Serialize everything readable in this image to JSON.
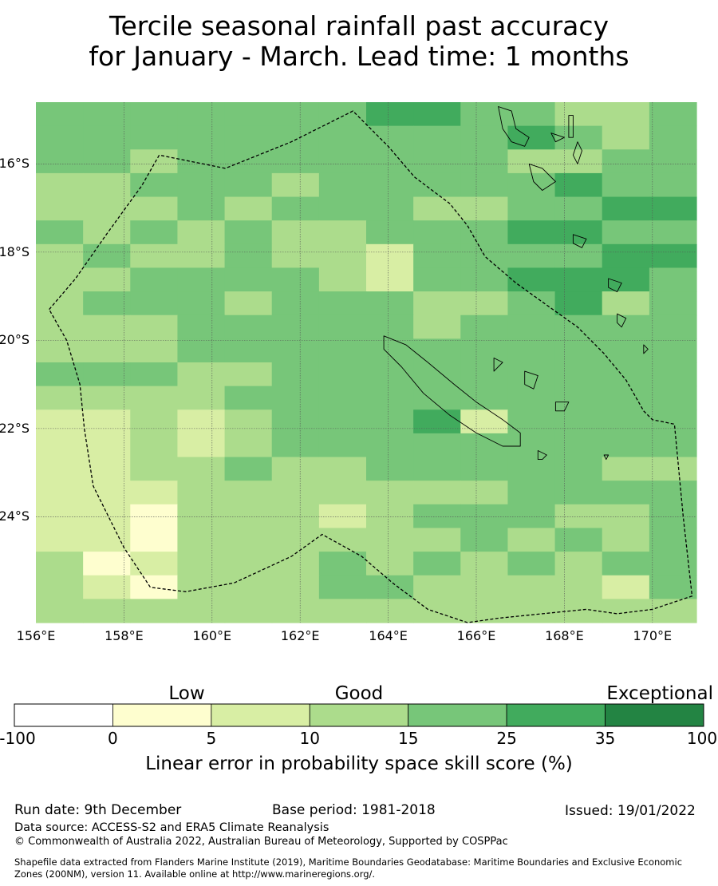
{
  "title": {
    "line1": "Tercile seasonal rainfall past accuracy",
    "line2": "for January - March. Lead time: 1 months"
  },
  "map": {
    "lon_range": [
      156,
      171
    ],
    "lat_range": [
      -14.6,
      -26.4
    ],
    "lon_ticks": [
      {
        "value": 156,
        "label": "156°E"
      },
      {
        "value": 158,
        "label": "158°E"
      },
      {
        "value": 160,
        "label": "160°E"
      },
      {
        "value": 162,
        "label": "162°E"
      },
      {
        "value": 164,
        "label": "164°E"
      },
      {
        "value": 166,
        "label": "166°E"
      },
      {
        "value": 168,
        "label": "168°E"
      },
      {
        "value": 170,
        "label": "170°E"
      }
    ],
    "lat_ticks": [
      {
        "value": -16,
        "label": "16°S"
      },
      {
        "value": -18,
        "label": "18°S"
      },
      {
        "value": -20,
        "label": "20°S"
      },
      {
        "value": -22,
        "label": "22°S"
      },
      {
        "value": -24,
        "label": "24°S"
      }
    ],
    "grid_rows": [
      "33333334433223",
      "33333333334323",
      "33233333332233",
      "22333233333433",
      "22232333223344",
      "32323223334433",
      "23223221333344",
      "22333321334443",
      "23332333223423",
      "22233333233333",
      "22233333333333",
      "33322333333333",
      "22223333333333",
      "11212333413333",
      "11212333333333",
      "11223223333322",
      "11122222223333",
      "11022212333223",
      "11022222232323",
      "20122232323233",
      "21022233222213",
      "22222222222222"
    ],
    "eez_boundary": [
      [
        156.3,
        -19.3
      ],
      [
        156.9,
        -18.6
      ],
      [
        157.6,
        -17.6
      ],
      [
        158.4,
        -16.5
      ],
      [
        158.8,
        -15.8
      ],
      [
        160.3,
        -16.1
      ],
      [
        161.8,
        -15.5
      ],
      [
        163.2,
        -14.8
      ],
      [
        164.0,
        -15.6
      ],
      [
        164.6,
        -16.3
      ],
      [
        165.4,
        -16.9
      ],
      [
        165.8,
        -17.4
      ],
      [
        166.2,
        -18.1
      ],
      [
        166.9,
        -18.7
      ],
      [
        167.6,
        -19.2
      ],
      [
        168.3,
        -19.7
      ],
      [
        168.9,
        -20.3
      ],
      [
        169.4,
        -20.9
      ],
      [
        169.8,
        -21.6
      ],
      [
        170.0,
        -21.8
      ],
      [
        170.5,
        -21.9
      ],
      [
        170.7,
        -24.0
      ],
      [
        170.9,
        -25.8
      ],
      [
        170.0,
        -26.1
      ],
      [
        169.2,
        -26.2
      ],
      [
        168.5,
        -26.1
      ],
      [
        167.5,
        -26.2
      ],
      [
        166.5,
        -26.3
      ],
      [
        165.8,
        -26.4
      ],
      [
        164.9,
        -26.1
      ],
      [
        164.1,
        -25.5
      ],
      [
        163.4,
        -24.9
      ],
      [
        162.5,
        -24.4
      ],
      [
        161.8,
        -24.9
      ],
      [
        160.5,
        -25.5
      ],
      [
        159.4,
        -25.7
      ],
      [
        158.6,
        -25.6
      ],
      [
        158.0,
        -24.7
      ],
      [
        157.3,
        -23.3
      ],
      [
        157.1,
        -22.0
      ],
      [
        157.0,
        -21.0
      ],
      [
        156.7,
        -20.0
      ],
      [
        156.3,
        -19.3
      ]
    ],
    "land": [
      {
        "name": "new-caledonia",
        "points": [
          [
            163.9,
            -19.9
          ],
          [
            164.4,
            -20.1
          ],
          [
            164.9,
            -20.5
          ],
          [
            165.5,
            -21.0
          ],
          [
            166.0,
            -21.4
          ],
          [
            166.6,
            -21.8
          ],
          [
            167.0,
            -22.1
          ],
          [
            167.0,
            -22.4
          ],
          [
            166.6,
            -22.4
          ],
          [
            166.0,
            -22.1
          ],
          [
            165.4,
            -21.7
          ],
          [
            164.8,
            -21.2
          ],
          [
            164.3,
            -20.6
          ],
          [
            163.9,
            -20.2
          ]
        ]
      },
      {
        "name": "espiritu-santo",
        "points": [
          [
            166.5,
            -14.7
          ],
          [
            166.8,
            -14.8
          ],
          [
            166.9,
            -15.2
          ],
          [
            167.2,
            -15.4
          ],
          [
            167.1,
            -15.6
          ],
          [
            166.8,
            -15.5
          ],
          [
            166.6,
            -15.2
          ]
        ]
      },
      {
        "name": "malakula",
        "points": [
          [
            167.2,
            -16.0
          ],
          [
            167.5,
            -16.1
          ],
          [
            167.8,
            -16.4
          ],
          [
            167.5,
            -16.6
          ],
          [
            167.3,
            -16.4
          ]
        ]
      },
      {
        "name": "maewo",
        "points": [
          [
            168.1,
            -14.9
          ],
          [
            168.2,
            -14.9
          ],
          [
            168.2,
            -15.4
          ],
          [
            168.1,
            -15.4
          ]
        ]
      },
      {
        "name": "efate",
        "points": [
          [
            168.2,
            -17.6
          ],
          [
            168.5,
            -17.7
          ],
          [
            168.4,
            -17.9
          ],
          [
            168.2,
            -17.8
          ]
        ]
      },
      {
        "name": "erromango",
        "points": [
          [
            169.0,
            -18.6
          ],
          [
            169.3,
            -18.7
          ],
          [
            169.2,
            -18.9
          ],
          [
            169.0,
            -18.8
          ]
        ]
      },
      {
        "name": "tanna",
        "points": [
          [
            169.2,
            -19.4
          ],
          [
            169.4,
            -19.5
          ],
          [
            169.3,
            -19.7
          ],
          [
            169.2,
            -19.6
          ]
        ]
      },
      {
        "name": "lifou",
        "points": [
          [
            167.1,
            -20.7
          ],
          [
            167.4,
            -20.8
          ],
          [
            167.3,
            -21.1
          ],
          [
            167.1,
            -21.0
          ]
        ]
      },
      {
        "name": "mare",
        "points": [
          [
            167.8,
            -21.4
          ],
          [
            168.1,
            -21.4
          ],
          [
            168.0,
            -21.6
          ],
          [
            167.8,
            -21.6
          ]
        ]
      },
      {
        "name": "ouvea",
        "points": [
          [
            166.4,
            -20.4
          ],
          [
            166.6,
            -20.5
          ],
          [
            166.4,
            -20.7
          ]
        ]
      },
      {
        "name": "isle-of-pines",
        "points": [
          [
            167.4,
            -22.5
          ],
          [
            167.6,
            -22.6
          ],
          [
            167.5,
            -22.7
          ],
          [
            167.4,
            -22.7
          ]
        ]
      },
      {
        "name": "ambae",
        "points": [
          [
            167.7,
            -15.3
          ],
          [
            168.0,
            -15.4
          ],
          [
            167.8,
            -15.5
          ]
        ]
      },
      {
        "name": "pentecost",
        "points": [
          [
            168.3,
            -15.5
          ],
          [
            168.4,
            -15.7
          ],
          [
            168.3,
            -16.0
          ],
          [
            168.2,
            -15.8
          ]
        ]
      },
      {
        "name": "walpole",
        "points": [
          [
            168.9,
            -22.6
          ],
          [
            169.0,
            -22.6
          ],
          [
            168.95,
            -22.7
          ]
        ]
      },
      {
        "name": "aneityum",
        "points": [
          [
            169.8,
            -20.1
          ],
          [
            169.9,
            -20.2
          ],
          [
            169.8,
            -20.3
          ]
        ]
      }
    ]
  },
  "colorbar": {
    "categories": [
      {
        "label": "Low",
        "center": 0.25
      },
      {
        "label": "Good",
        "center": 0.5
      },
      {
        "label": "Exceptional",
        "center": 0.9
      }
    ],
    "ticks": [
      "-100",
      "0",
      "5",
      "10",
      "15",
      "25",
      "35",
      "100"
    ],
    "colors": [
      "#ffffff",
      "#fefecf",
      "#d8eea4",
      "#acdc8c",
      "#77c679",
      "#41ab5d",
      "#238443"
    ],
    "grid_color": "#555555",
    "title": "Linear error in probability space skill score (%)"
  },
  "footer": {
    "run_date": "Run date: 9th December",
    "base_period": "Base period: 1981-2018",
    "issued": "Issued: 19/01/2022",
    "data_source": "Data source: ACCESS-S2 and ERA5 Climate Reanalysis",
    "copyright": "© Commonwealth of Australia 2022, Australian Bureau of Meteorology, Supported by COSPPac",
    "shapefile_1": "Shapefile data extracted from Flanders Marine Institute (2019), Maritime Boundaries Geodatabase: Maritime Boundaries and Exclusive Economic",
    "shapefile_2": "Zones (200NM), version 11. Available online at http://www.marineregions.org/."
  }
}
